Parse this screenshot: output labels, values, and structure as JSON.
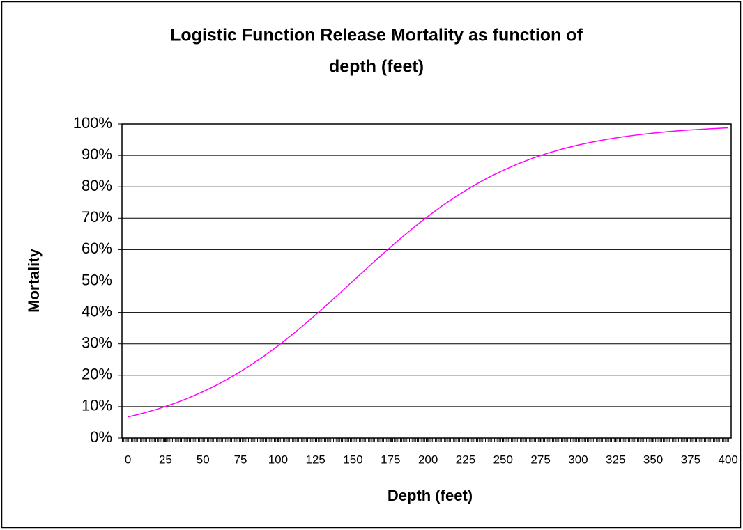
{
  "chart_data": {
    "type": "line",
    "title": [
      "Logistic Function Release Mortality as function of",
      "depth (feet)"
    ],
    "x_label": "Depth (feet)",
    "y_label": "Mortality",
    "x": [
      0,
      10,
      20,
      30,
      40,
      50,
      60,
      70,
      80,
      90,
      100,
      110,
      120,
      130,
      140,
      150,
      160,
      170,
      180,
      190,
      200,
      210,
      220,
      230,
      240,
      250,
      260,
      270,
      280,
      290,
      300,
      310,
      320,
      330,
      340,
      350,
      360,
      370,
      380,
      390,
      400
    ],
    "series": [
      {
        "name": "Mortality",
        "color": "#ff00ff",
        "values": [
          6.71,
          7.9,
          9.27,
          10.86,
          12.68,
          14.75,
          17.09,
          19.72,
          22.66,
          25.87,
          29.38,
          33.14,
          37.13,
          41.32,
          45.62,
          50,
          54.38,
          58.68,
          62.87,
          66.86,
          70.62,
          74.13,
          77.34,
          80.28,
          82.91,
          85.25,
          87.32,
          89.14,
          90.73,
          92.1,
          93.29,
          94.3,
          95.17,
          95.92,
          96.55,
          97.1,
          97.55,
          97.94,
          98.26,
          98.54,
          98.77
        ]
      }
    ],
    "xlim": [
      -4,
      402
    ],
    "xticks": [
      0,
      25,
      50,
      75,
      100,
      125,
      150,
      175,
      200,
      225,
      250,
      275,
      300,
      325,
      350,
      375,
      400
    ],
    "ylim": [
      0,
      100
    ],
    "yticks": [
      {
        "value": 0,
        "label": "0%"
      },
      {
        "value": 10,
        "label": "10%"
      },
      {
        "value": 20,
        "label": "20%"
      },
      {
        "value": 30,
        "label": "30%"
      },
      {
        "value": 40,
        "label": "40%"
      },
      {
        "value": 50,
        "label": "50%"
      },
      {
        "value": 60,
        "label": "60%"
      },
      {
        "value": 70,
        "label": "70%"
      },
      {
        "value": 80,
        "label": "80%"
      },
      {
        "value": 90,
        "label": "90%"
      },
      {
        "value": 100,
        "label": "100%"
      }
    ],
    "grid": true
  }
}
